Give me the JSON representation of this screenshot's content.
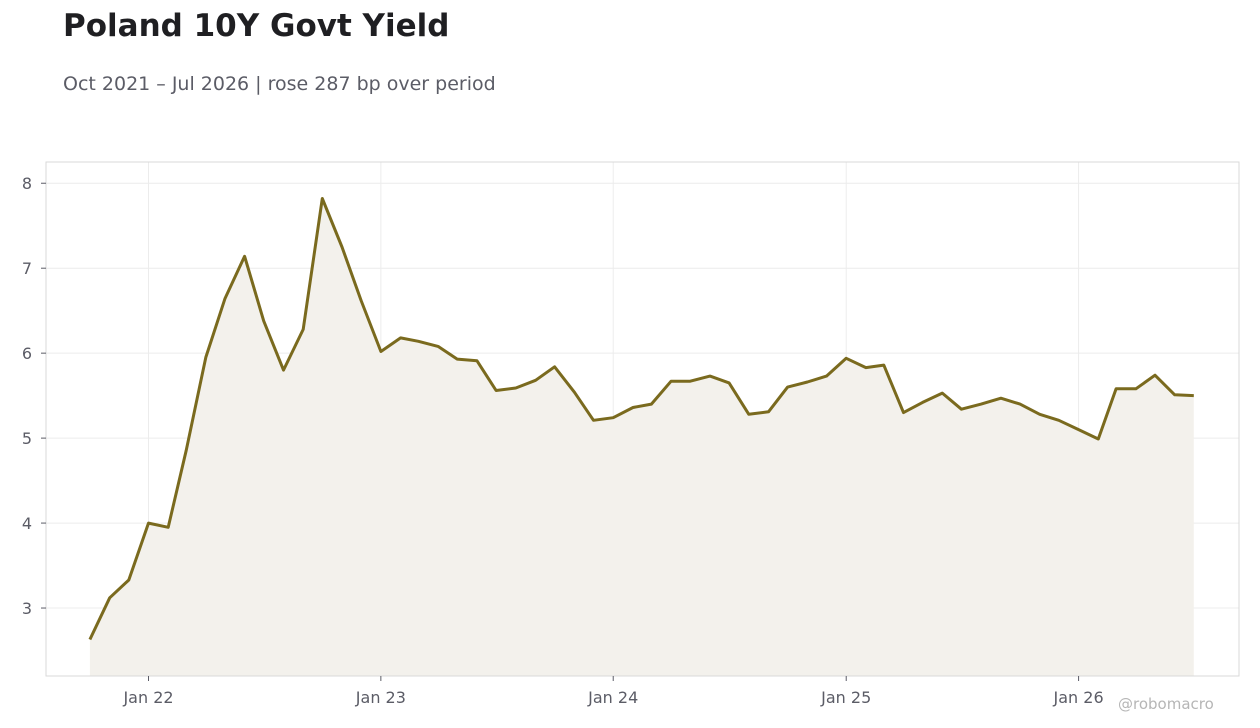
{
  "header": {
    "title": "Poland 10Y Govt Yield",
    "subtitle": "Oct 2021 – Jul 2026 | rose 287 bp over period"
  },
  "footer": {
    "credit": "@robomacro"
  },
  "colors": {
    "line": "#7a6a1e",
    "fill": "#f3f1ec",
    "grid": "#ececec",
    "frame": "#d9d9d9",
    "text": "#5b5c66"
  },
  "chart_data": {
    "type": "area",
    "title": "Poland 10Y Govt Yield",
    "subtitle": "Oct 2021 – Jul 2026 | rose 287 bp over period",
    "xlabel": "",
    "ylabel": "",
    "grid": true,
    "legend": "none",
    "xlim": [
      "2021-07-24",
      "2026-09-10"
    ],
    "ylim": [
      2.2,
      8.25
    ],
    "x_ticks": [
      {
        "date": "2022-01-01",
        "label": "Jan 22"
      },
      {
        "date": "2023-01-01",
        "label": "Jan 23"
      },
      {
        "date": "2024-01-01",
        "label": "Jan 24"
      },
      {
        "date": "2025-01-01",
        "label": "Jan 25"
      },
      {
        "date": "2026-01-01",
        "label": "Jan 26"
      }
    ],
    "y_ticks": [
      3,
      4,
      5,
      6,
      7,
      8
    ],
    "series": [
      {
        "x": [
          "2021-10-01",
          "2021-11-01",
          "2021-12-01",
          "2022-01-01",
          "2022-02-01",
          "2022-03-01",
          "2022-04-01",
          "2022-05-01",
          "2022-06-01",
          "2022-07-01",
          "2022-08-01",
          "2022-09-01",
          "2022-10-01",
          "2022-11-01",
          "2022-12-01",
          "2023-01-01",
          "2023-02-01",
          "2023-03-01",
          "2023-04-01",
          "2023-05-01",
          "2023-06-01",
          "2023-07-01",
          "2023-08-01",
          "2023-09-01",
          "2023-10-01",
          "2023-11-01",
          "2023-12-01",
          "2024-01-01",
          "2024-02-01",
          "2024-03-01",
          "2024-04-01",
          "2024-05-01",
          "2024-06-01",
          "2024-07-01",
          "2024-08-01",
          "2024-09-01",
          "2024-10-01",
          "2024-11-01",
          "2024-12-01",
          "2025-01-01",
          "2025-02-01",
          "2025-03-01",
          "2025-04-01",
          "2025-05-01",
          "2025-06-01",
          "2025-07-01",
          "2025-08-01",
          "2025-09-01",
          "2025-10-01",
          "2025-11-01",
          "2025-12-01",
          "2026-01-01",
          "2026-02-01",
          "2026-03-01",
          "2026-04-01",
          "2026-05-01",
          "2026-06-01",
          "2026-07-01"
        ],
        "values": [
          2.63,
          3.12,
          3.33,
          4.0,
          3.95,
          4.85,
          5.95,
          6.64,
          7.14,
          6.38,
          5.8,
          6.28,
          7.82,
          7.25,
          6.62,
          6.02,
          6.18,
          6.14,
          6.08,
          5.93,
          5.91,
          5.56,
          5.59,
          5.68,
          5.84,
          5.54,
          5.21,
          5.24,
          5.36,
          5.4,
          5.67,
          5.67,
          5.73,
          5.65,
          5.28,
          5.31,
          5.6,
          5.66,
          5.73,
          5.94,
          5.83,
          5.86,
          5.3,
          5.42,
          5.53,
          5.34,
          5.4,
          5.47,
          5.4,
          5.28,
          5.21,
          5.1,
          4.99,
          5.58,
          5.58,
          5.74,
          5.51,
          5.5
        ]
      }
    ]
  }
}
